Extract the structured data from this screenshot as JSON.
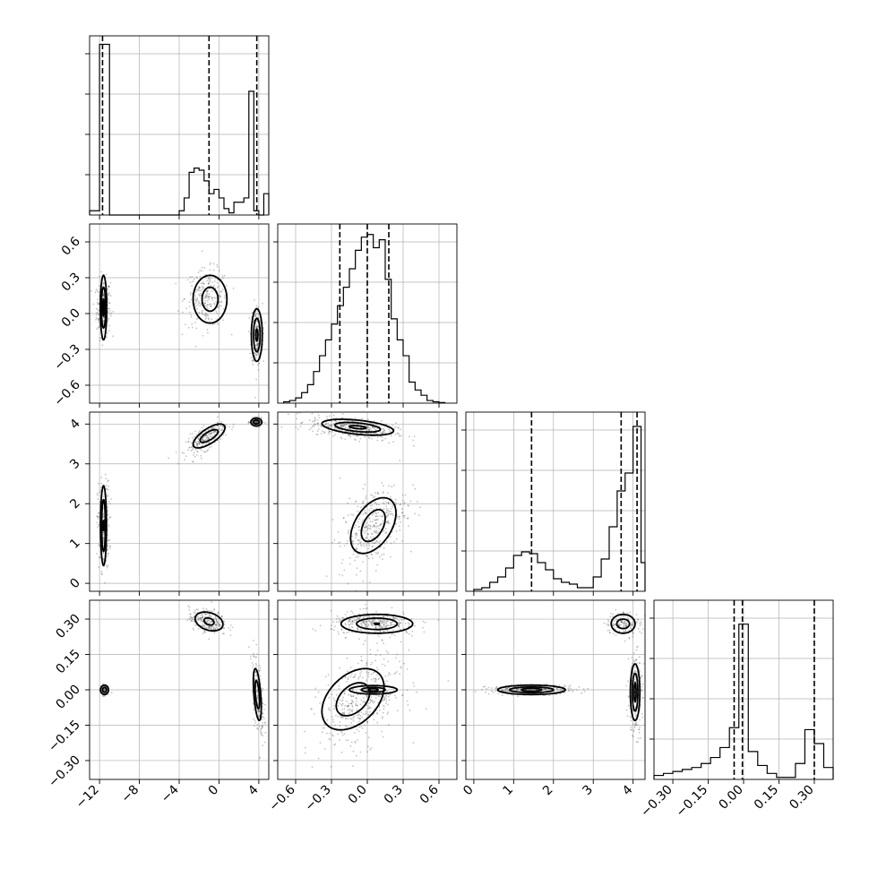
{
  "chart_data": {
    "type": "corner",
    "params": 4,
    "grid": true,
    "axes": {
      "p0": {
        "range": [
          -13,
          5
        ],
        "ticks": [
          -12,
          -8,
          -4,
          0,
          4
        ],
        "tick_labels": [
          "−12",
          "−8",
          "−4",
          "0",
          "4"
        ]
      },
      "p1": {
        "range": [
          -0.75,
          0.75
        ],
        "ticks": [
          -0.6,
          -0.3,
          0.0,
          0.3,
          0.6
        ],
        "tick_labels": [
          "−0.6",
          "−0.3",
          "0.0",
          "0.3",
          "0.6"
        ]
      },
      "p2": {
        "range": [
          -0.2,
          4.3
        ],
        "ticks": [
          0,
          1,
          2,
          3,
          4
        ],
        "tick_labels": [
          "0",
          "1",
          "2",
          "3",
          "4"
        ]
      },
      "p3": {
        "range": [
          -0.38,
          0.38
        ],
        "ticks": [
          -0.3,
          -0.15,
          0.0,
          0.15,
          0.3
        ],
        "tick_labels": [
          "−0.30",
          "−0.15",
          "0.00",
          "0.15",
          "0.30"
        ]
      }
    },
    "histograms": [
      {
        "param": "p0",
        "bins": [
          [
            -13.0,
            -12.0,
            1
          ],
          [
            -12.0,
            -11.0,
            40
          ],
          [
            -11.0,
            -10.0,
            0
          ],
          [
            -10.0,
            -9.0,
            0
          ],
          [
            -9.0,
            -8.0,
            0
          ],
          [
            -8.0,
            -7.0,
            0
          ],
          [
            -7.0,
            -6.0,
            0
          ],
          [
            -6.0,
            -5.0,
            0
          ],
          [
            -5.0,
            -4.0,
            0
          ],
          [
            -4.0,
            -3.5,
            1
          ],
          [
            -3.5,
            -3.0,
            4
          ],
          [
            -3.0,
            -2.5,
            10
          ],
          [
            -2.5,
            -2.0,
            11
          ],
          [
            -2.0,
            -1.5,
            10.5
          ],
          [
            -1.5,
            -1.0,
            8
          ],
          [
            -1.0,
            -0.5,
            5
          ],
          [
            -0.5,
            0.0,
            6
          ],
          [
            0.0,
            0.5,
            4
          ],
          [
            0.5,
            1.0,
            1.5
          ],
          [
            1.0,
            1.5,
            0.5
          ],
          [
            1.5,
            2.0,
            3
          ],
          [
            2.0,
            2.5,
            3
          ],
          [
            2.5,
            3.0,
            4
          ],
          [
            3.0,
            3.5,
            29
          ],
          [
            3.5,
            4.0,
            1
          ],
          [
            4.0,
            4.5,
            0
          ],
          [
            4.5,
            5.0,
            5
          ]
        ],
        "ymax": 42,
        "quantiles": [
          -11.7,
          -1.0,
          3.8
        ]
      },
      {
        "param": "p1",
        "bins": [
          [
            -0.7,
            -0.65,
            0.5
          ],
          [
            -0.65,
            -0.6,
            1
          ],
          [
            -0.6,
            -0.55,
            2
          ],
          [
            -0.55,
            -0.5,
            4
          ],
          [
            -0.5,
            -0.45,
            7
          ],
          [
            -0.45,
            -0.4,
            12
          ],
          [
            -0.4,
            -0.35,
            18
          ],
          [
            -0.35,
            -0.3,
            24
          ],
          [
            -0.3,
            -0.25,
            30
          ],
          [
            -0.25,
            -0.2,
            37
          ],
          [
            -0.2,
            -0.15,
            44
          ],
          [
            -0.15,
            -0.1,
            51
          ],
          [
            -0.1,
            -0.05,
            58
          ],
          [
            -0.05,
            0.0,
            63
          ],
          [
            0.0,
            0.05,
            64
          ],
          [
            0.05,
            0.1,
            59
          ],
          [
            0.1,
            0.15,
            62
          ],
          [
            0.15,
            0.2,
            47
          ],
          [
            0.2,
            0.25,
            32
          ],
          [
            0.25,
            0.3,
            24
          ],
          [
            0.3,
            0.35,
            18
          ],
          [
            0.35,
            0.4,
            8
          ],
          [
            0.4,
            0.45,
            5
          ],
          [
            0.45,
            0.5,
            3
          ],
          [
            0.5,
            0.55,
            1
          ],
          [
            0.55,
            0.6,
            0.5
          ],
          [
            0.6,
            0.65,
            0.2
          ]
        ],
        "ymax": 68,
        "quantiles": [
          -0.23,
          0.0,
          0.18
        ]
      },
      {
        "param": "p2",
        "bins": [
          [
            0.0,
            0.2,
            0.5
          ],
          [
            0.2,
            0.4,
            1
          ],
          [
            0.4,
            0.6,
            2.5
          ],
          [
            0.6,
            0.8,
            4
          ],
          [
            0.8,
            1.0,
            6.5
          ],
          [
            1.0,
            1.2,
            10
          ],
          [
            1.2,
            1.4,
            11
          ],
          [
            1.4,
            1.6,
            10.5
          ],
          [
            1.6,
            1.8,
            8
          ],
          [
            1.8,
            2.0,
            6
          ],
          [
            2.0,
            2.2,
            3.5
          ],
          [
            2.2,
            2.4,
            2.5
          ],
          [
            2.4,
            2.6,
            2
          ],
          [
            2.6,
            2.8,
            1
          ],
          [
            2.8,
            3.0,
            1
          ],
          [
            3.0,
            3.2,
            4
          ],
          [
            3.2,
            3.4,
            9
          ],
          [
            3.4,
            3.6,
            18
          ],
          [
            3.6,
            3.8,
            28
          ],
          [
            3.8,
            4.0,
            33
          ],
          [
            4.0,
            4.2,
            46
          ],
          [
            4.2,
            4.4,
            8
          ]
        ],
        "ymax": 50,
        "quantiles": [
          1.45,
          3.7,
          4.1
        ]
      },
      {
        "param": "p3",
        "bins": [
          [
            -0.38,
            -0.34,
            1
          ],
          [
            -0.34,
            -0.3,
            1.5
          ],
          [
            -0.3,
            -0.26,
            2
          ],
          [
            -0.26,
            -0.22,
            2.5
          ],
          [
            -0.22,
            -0.18,
            3
          ],
          [
            -0.18,
            -0.14,
            4
          ],
          [
            -0.14,
            -0.1,
            5.5
          ],
          [
            -0.1,
            -0.06,
            8
          ],
          [
            -0.06,
            -0.02,
            13
          ],
          [
            -0.02,
            0.02,
            39
          ],
          [
            0.02,
            0.06,
            7
          ],
          [
            0.06,
            0.1,
            3.5
          ],
          [
            0.1,
            0.14,
            1.5
          ],
          [
            0.14,
            0.18,
            0.5
          ],
          [
            0.18,
            0.22,
            0.5
          ],
          [
            0.22,
            0.26,
            4
          ],
          [
            0.26,
            0.3,
            12.5
          ],
          [
            0.3,
            0.34,
            9
          ],
          [
            0.34,
            0.38,
            3
          ]
        ],
        "ymax": 45,
        "quantiles": [
          -0.04,
          -0.005,
          0.3
        ]
      }
    ],
    "clusters": [
      {
        "xp": 1,
        "yp": 0,
        "mx": -11.6,
        "my": 0.05,
        "sx": 0.35,
        "sy": 0.12,
        "rho": 0.0,
        "n": 260
      },
      {
        "xp": 1,
        "yp": 0,
        "mx": -1.2,
        "my": 0.13,
        "sx": 1.1,
        "sy": 0.12,
        "rho": 0.0,
        "n": 260
      },
      {
        "xp": 1,
        "yp": 0,
        "mx": 3.8,
        "my": -0.18,
        "sx": 0.28,
        "sy": 0.13,
        "rho": 0.0,
        "n": 220
      },
      {
        "xp": 2,
        "yp": 0,
        "mx": -11.6,
        "my": 1.45,
        "sx": 0.3,
        "sy": 0.55,
        "rho": 0.0,
        "n": 240
      },
      {
        "xp": 2,
        "yp": 0,
        "mx": -1.3,
        "my": 3.65,
        "sx": 1.0,
        "sy": 0.2,
        "rho": 0.7,
        "n": 260
      },
      {
        "xp": 2,
        "yp": 0,
        "mx": 3.75,
        "my": 4.05,
        "sx": 0.3,
        "sy": 0.05,
        "rho": 0.0,
        "n": 120
      },
      {
        "xp": 2,
        "yp": 1,
        "mx": -0.12,
        "my": 3.9,
        "sx": 0.18,
        "sy": 0.14,
        "rho": -0.45,
        "n": 450
      },
      {
        "xp": 2,
        "yp": 1,
        "mx": 0.05,
        "my": 1.45,
        "sx": 0.14,
        "sy": 0.52,
        "rho": 0.45,
        "n": 380
      },
      {
        "xp": 3,
        "yp": 0,
        "mx": -11.5,
        "my": 0.0,
        "sx": 0.22,
        "sy": 0.012,
        "rho": 0.0,
        "n": 80
      },
      {
        "xp": 3,
        "yp": 0,
        "mx": -1.1,
        "my": 0.29,
        "sx": 0.95,
        "sy": 0.025,
        "rho": -0.3,
        "n": 240
      },
      {
        "xp": 3,
        "yp": 0,
        "mx": 3.9,
        "my": -0.02,
        "sx": 0.3,
        "sy": 0.09,
        "rho": -0.5,
        "n": 200
      },
      {
        "xp": 3,
        "yp": 1,
        "mx": 0.06,
        "my": 0.28,
        "sx": 0.18,
        "sy": 0.025,
        "rho": 0.0,
        "n": 320
      },
      {
        "xp": 3,
        "yp": 1,
        "mx": -0.05,
        "my": -0.05,
        "sx": 0.17,
        "sy": 0.1,
        "rho": 0.4,
        "n": 450
      },
      {
        "xp": 3,
        "yp": 2,
        "mx": 1.45,
        "my": 0.0,
        "sx": 0.55,
        "sy": 0.01,
        "rho": 0.0,
        "n": 280
      },
      {
        "xp": 3,
        "yp": 2,
        "mx": 3.75,
        "my": 0.28,
        "sx": 0.22,
        "sy": 0.025,
        "rho": 0.0,
        "n": 160
      },
      {
        "xp": 3,
        "yp": 2,
        "mx": 4.05,
        "my": -0.01,
        "sx": 0.09,
        "sy": 0.09,
        "rho": 0.0,
        "n": 230
      }
    ],
    "contours": [
      {
        "xp": 1,
        "yp": 0,
        "mx": -11.6,
        "my": 0.05,
        "rx": [
          0.32,
          0.22,
          0.08
        ],
        "ry": [
          0.27,
          0.17,
          0.07
        ],
        "rho": 0.0
      },
      {
        "xp": 1,
        "yp": 0,
        "mx": -0.9,
        "my": 0.12,
        "rx": [
          1.7,
          0.8
        ],
        "ry": [
          0.2,
          0.1
        ],
        "rho": 0.0
      },
      {
        "xp": 1,
        "yp": 0,
        "mx": 3.8,
        "my": -0.18,
        "rx": [
          0.55,
          0.33,
          0.1
        ],
        "ry": [
          0.22,
          0.14,
          0.05
        ],
        "rho": 0.0
      },
      {
        "xp": 2,
        "yp": 0,
        "mx": -11.6,
        "my": 1.45,
        "rx": [
          0.3,
          0.18,
          0.04
        ],
        "ry": [
          1.0,
          0.65,
          0.12
        ],
        "rho": 0.0
      },
      {
        "xp": 2,
        "yp": 0,
        "mx": -1.0,
        "my": 3.7,
        "rx": [
          1.6,
          0.9
        ],
        "ry": [
          0.3,
          0.16
        ],
        "rho": 0.7
      },
      {
        "xp": 2,
        "yp": 0,
        "mx": 3.75,
        "my": 4.05,
        "rx": [
          0.55,
          0.3
        ],
        "ry": [
          0.1,
          0.05
        ],
        "rho": 0.0
      },
      {
        "xp": 2,
        "yp": 1,
        "mx": -0.08,
        "my": 3.92,
        "rx": [
          0.3,
          0.19,
          0.07
        ],
        "ry": [
          0.2,
          0.12,
          0.04
        ],
        "rho": -0.45
      },
      {
        "xp": 2,
        "yp": 1,
        "mx": 0.05,
        "my": 1.45,
        "rx": [
          0.19,
          0.1
        ],
        "ry": [
          0.7,
          0.4
        ],
        "rho": 0.45
      },
      {
        "xp": 3,
        "yp": 0,
        "mx": -11.5,
        "my": 0.0,
        "rx": [
          0.4,
          0.2
        ],
        "ry": [
          0.02,
          0.01
        ],
        "rho": 0.0
      },
      {
        "xp": 3,
        "yp": 0,
        "mx": -1.0,
        "my": 0.29,
        "rx": [
          1.4,
          0.5
        ],
        "ry": [
          0.04,
          0.015
        ],
        "rho": -0.3
      },
      {
        "xp": 3,
        "yp": 0,
        "mx": 3.85,
        "my": -0.02,
        "rx": [
          0.4,
          0.22
        ],
        "ry": [
          0.11,
          0.06
        ],
        "rho": -0.5
      },
      {
        "xp": 3,
        "yp": 1,
        "mx": 0.08,
        "my": 0.28,
        "rx": [
          0.3,
          0.17,
          0.02
        ],
        "ry": [
          0.04,
          0.024,
          0.003
        ],
        "rho": 0.0
      },
      {
        "xp": 3,
        "yp": 1,
        "mx": -0.12,
        "my": -0.04,
        "rx": [
          0.26,
          0.14
        ],
        "ry": [
          0.13,
          0.07
        ],
        "rho": 0.4
      },
      {
        "xp": 3,
        "yp": 1,
        "mx": 0.05,
        "my": 0.0,
        "rx": [
          0.2,
          0.1,
          0.04
        ],
        "ry": [
          0.018,
          0.01,
          0.005
        ],
        "rho": 0.0
      },
      {
        "xp": 3,
        "yp": 2,
        "mx": 1.45,
        "my": 0.0,
        "rx": [
          0.85,
          0.55,
          0.25
        ],
        "ry": [
          0.02,
          0.012,
          0.006
        ],
        "rho": 0.0
      },
      {
        "xp": 3,
        "yp": 2,
        "mx": 3.75,
        "my": 0.28,
        "rx": [
          0.3,
          0.16
        ],
        "ry": [
          0.04,
          0.02
        ],
        "rho": 0.0
      },
      {
        "xp": 3,
        "yp": 2,
        "mx": 4.05,
        "my": -0.01,
        "rx": [
          0.12,
          0.07,
          0.025
        ],
        "ry": [
          0.12,
          0.08,
          0.04
        ],
        "rho": 0.0
      }
    ],
    "colors": {
      "ink": "#000000",
      "grid": "#b0b0b0",
      "points": "#555555"
    }
  }
}
